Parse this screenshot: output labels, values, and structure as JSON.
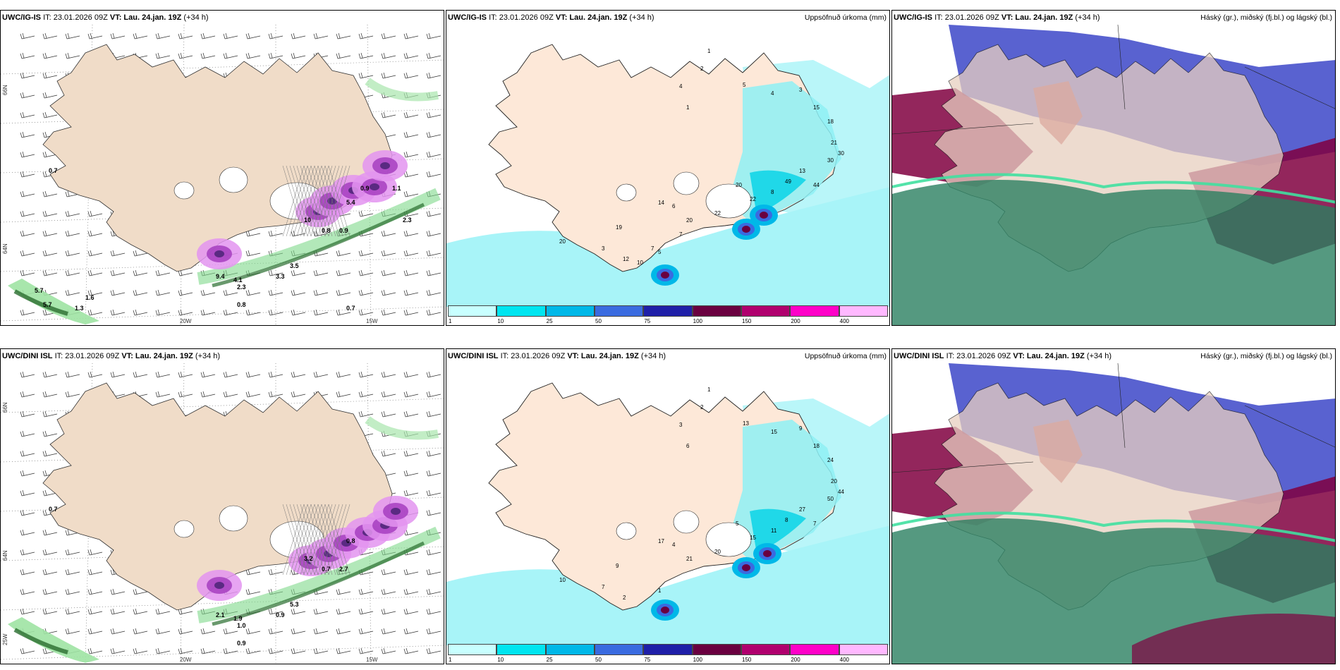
{
  "rows": [
    {
      "model": "UWC/IG-IS",
      "it": "IT: 23.01.2026 09Z",
      "vt_label": "VT:",
      "vt_value": "Lau. 24.jan. 19Z",
      "lead": "(+34 h)",
      "wind_values": [
        "0.7",
        "9.4",
        "4.1",
        "0.8",
        "2.3",
        "3.3",
        "3.5",
        "10",
        "0.8",
        "0.9",
        "5.4",
        "0.9",
        "1.1",
        "2.3",
        "5.7",
        "5.7",
        "1.6",
        "1.3",
        "0.7"
      ],
      "precip_values": [
        "1",
        "2",
        "4",
        "1",
        "5",
        "4",
        "3",
        "15",
        "18",
        "21",
        "30",
        "30",
        "13",
        "49",
        "44",
        "20",
        "8",
        "22",
        "22",
        "20",
        "14",
        "19",
        "20",
        "6",
        "3",
        "5",
        "12",
        "10",
        "7",
        "7"
      ]
    },
    {
      "model": "UWC/DINI ISL",
      "it": "IT: 23.01.2026 09Z",
      "vt_label": "VT:",
      "vt_value": "Lau. 24.jan. 19Z",
      "lead": "(+34 h)",
      "wind_values": [
        "0.7",
        "2.1",
        "1.9",
        "0.9",
        "1.0",
        "0.9",
        "5.3",
        "3.2",
        "0.7",
        "2.7",
        "0.8"
      ],
      "precip_values": [
        "1",
        "2",
        "3",
        "6",
        "13",
        "15",
        "9",
        "18",
        "24",
        "20",
        "44",
        "50",
        "27",
        "8",
        "7",
        "5",
        "11",
        "15",
        "20",
        "21",
        "17",
        "9",
        "10",
        "4",
        "7",
        "1",
        "2"
      ]
    }
  ],
  "map_labels": {
    "lat_66": "66N",
    "lat_65": "64N",
    "lon_20": "20W",
    "lon_15": "15W",
    "lon_25": "25W"
  },
  "precip_title": "Uppsöfnuð úrkoma (mm)",
  "cloud_title": "Háský (gr.), miðský (fj.bl.) og lágský (bl.)",
  "colorbar": {
    "ticks": [
      "1",
      "10",
      "25",
      "50",
      "75",
      "100",
      "150",
      "200",
      "400"
    ],
    "colors": [
      "#c8ffff",
      "#00e5f0",
      "#00b8e8",
      "#3a6be0",
      "#1f1fa8",
      "#6a0040",
      "#b0006e",
      "#ff00c8",
      "#ffb8ff"
    ]
  },
  "colors": {
    "land": "#f0dcc8",
    "precip_land": "#fde8d8",
    "sea_precip": "#a8f4f8",
    "wind_green": "#3cb44b",
    "wind_purple": "#b43cc8",
    "cloud_high": "#800040",
    "cloud_mid": "#3c46c8",
    "cloud_low": "#2a8060"
  }
}
